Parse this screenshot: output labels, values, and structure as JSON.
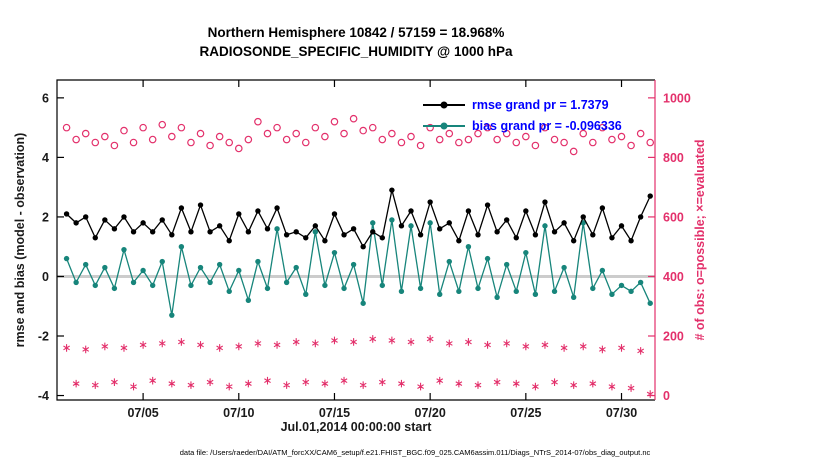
{
  "title": {
    "line1": "Northern Hemisphere 10842 / 57159 = 18.968%",
    "line2": "RADIOSONDE_SPECIFIC_HUMIDITY @ 1000 hPa"
  },
  "axes": {
    "xlabel": "Jul.01,2014 00:00:00 start",
    "ylabel_left": "rmse and bias (model - observation)",
    "ylabel_right": "# of obs: o=possible; ×=evaluated"
  },
  "caption": "data file: /Users/raeder/DAI/ATM_forcXX/CAM6_setup/f.e21.FHIST_BGC.f09_025.CAM6assim.011/Diags_NTrS_2014-07/obs_diag_output.nc",
  "legend": {
    "rmse_label": "rmse grand pr = 1.7379",
    "bias_label": "bias grand pr = -0.096336",
    "text_color": "#0000ff"
  },
  "colors": {
    "rmse": "#000000",
    "bias": "#17857b",
    "obs": "#e3306b",
    "zero_line": "#cccccc",
    "axis": "#000000",
    "tick_text": "#1a1a1a"
  },
  "chart_data": {
    "type": "line",
    "title": "Northern Hemisphere 10842 / 57159 = 18.968% | RADIOSONDE_SPECIFIC_HUMIDITY @ 1000 hPa",
    "xlabel": "Jul.01,2014 00:00:00 start",
    "ylabel_left": "rmse and bias (model - observation)",
    "ylabel_right": "# of obs: o=possible; ×=evaluated",
    "legend_position": "top-right-inside",
    "grid": false,
    "xlim": [
      0.5,
      31.75
    ],
    "ylim_left": [
      -4.15,
      6.6
    ],
    "ylim_right": [
      -15,
      1060
    ],
    "xticks": [
      {
        "value": 5,
        "label": "07/05"
      },
      {
        "value": 10,
        "label": "07/10"
      },
      {
        "value": 15,
        "label": "07/15"
      },
      {
        "value": 20,
        "label": "07/20"
      },
      {
        "value": 25,
        "label": "07/25"
      },
      {
        "value": 30,
        "label": "07/30"
      }
    ],
    "yticks_left": [
      -4,
      -2,
      0,
      2,
      4,
      6
    ],
    "yticks_right": [
      0,
      200,
      400,
      600,
      800,
      1000
    ],
    "x_days_july2014": [
      1,
      1.5,
      2,
      2.5,
      3,
      3.5,
      4,
      4.5,
      5,
      5.5,
      6,
      6.5,
      7,
      7.5,
      8,
      8.5,
      9,
      9.5,
      10,
      10.5,
      11,
      11.5,
      12,
      12.5,
      13,
      13.5,
      14,
      14.5,
      15,
      15.5,
      16,
      16.5,
      17,
      17.5,
      18,
      18.5,
      19,
      19.5,
      20,
      20.5,
      21,
      21.5,
      22,
      22.5,
      23,
      23.5,
      24,
      24.5,
      25,
      25.5,
      26,
      26.5,
      27,
      27.5,
      28,
      28.5,
      29,
      29.5,
      30,
      30.5,
      31,
      31.5
    ],
    "series": [
      {
        "name": "rmse",
        "axis": "left",
        "marker": "filled-circle",
        "color": "#000000",
        "grand_mean": 1.7379,
        "values": [
          2.1,
          1.8,
          2.0,
          1.3,
          1.9,
          1.6,
          2.0,
          1.5,
          1.8,
          1.5,
          1.9,
          1.4,
          2.3,
          1.5,
          2.4,
          1.5,
          1.7,
          1.2,
          2.1,
          1.5,
          2.2,
          1.6,
          2.3,
          1.4,
          1.5,
          1.3,
          1.7,
          1.2,
          2.1,
          1.4,
          1.6,
          1.0,
          1.5,
          1.3,
          2.9,
          1.7,
          2.2,
          1.4,
          2.5,
          1.6,
          1.8,
          1.2,
          2.2,
          1.4,
          2.4,
          1.5,
          1.9,
          1.3,
          2.2,
          1.4,
          2.5,
          1.5,
          1.8,
          1.2,
          2.0,
          1.4,
          2.3,
          1.3,
          1.7,
          1.2,
          2.0,
          2.7
        ]
      },
      {
        "name": "bias",
        "axis": "left",
        "marker": "filled-circle",
        "color": "#17857b",
        "grand_mean": -0.096336,
        "values": [
          0.6,
          -0.2,
          0.4,
          -0.3,
          0.3,
          -0.4,
          0.9,
          -0.2,
          0.2,
          -0.3,
          0.5,
          -1.3,
          1.0,
          -0.3,
          0.3,
          -0.2,
          0.4,
          -0.5,
          0.2,
          -0.8,
          0.5,
          -0.4,
          1.6,
          -0.2,
          0.3,
          -0.6,
          1.5,
          -0.3,
          0.8,
          -0.4,
          0.4,
          -0.9,
          1.8,
          -0.3,
          1.9,
          -0.5,
          1.7,
          -0.4,
          1.8,
          -0.6,
          0.5,
          -0.5,
          1.0,
          -0.4,
          0.6,
          -0.7,
          0.4,
          -0.5,
          0.8,
          -0.6,
          1.7,
          -0.5,
          0.3,
          -0.7,
          1.8,
          -0.4,
          0.2,
          -0.6,
          -0.3,
          -0.5,
          -0.2,
          -0.9
        ]
      },
      {
        "name": "possible_obs",
        "axis": "right",
        "marker": "open-circle",
        "color": "#e3306b",
        "values": [
          900,
          860,
          880,
          850,
          870,
          840,
          890,
          850,
          900,
          860,
          910,
          870,
          900,
          850,
          880,
          840,
          870,
          850,
          830,
          860,
          920,
          880,
          900,
          860,
          880,
          850,
          900,
          870,
          920,
          880,
          930,
          890,
          900,
          860,
          880,
          850,
          870,
          840,
          900,
          860,
          880,
          850,
          860,
          880,
          900,
          860,
          880,
          850,
          870,
          840,
          900,
          860,
          850,
          820,
          880,
          850,
          900,
          860,
          870,
          840,
          880,
          850
        ]
      },
      {
        "name": "evaluated_obs",
        "axis": "right",
        "marker": "asterisk",
        "color": "#e3306b",
        "values": [
          160,
          40,
          155,
          35,
          165,
          45,
          160,
          30,
          170,
          50,
          175,
          40,
          180,
          35,
          170,
          45,
          160,
          30,
          165,
          40,
          175,
          50,
          170,
          35,
          180,
          45,
          175,
          40,
          185,
          50,
          180,
          35,
          190,
          45,
          185,
          40,
          180,
          30,
          190,
          50,
          175,
          40,
          180,
          35,
          170,
          45,
          175,
          40,
          165,
          30,
          170,
          45,
          160,
          35,
          165,
          40,
          155,
          30,
          160,
          25,
          150,
          5
        ]
      }
    ]
  }
}
